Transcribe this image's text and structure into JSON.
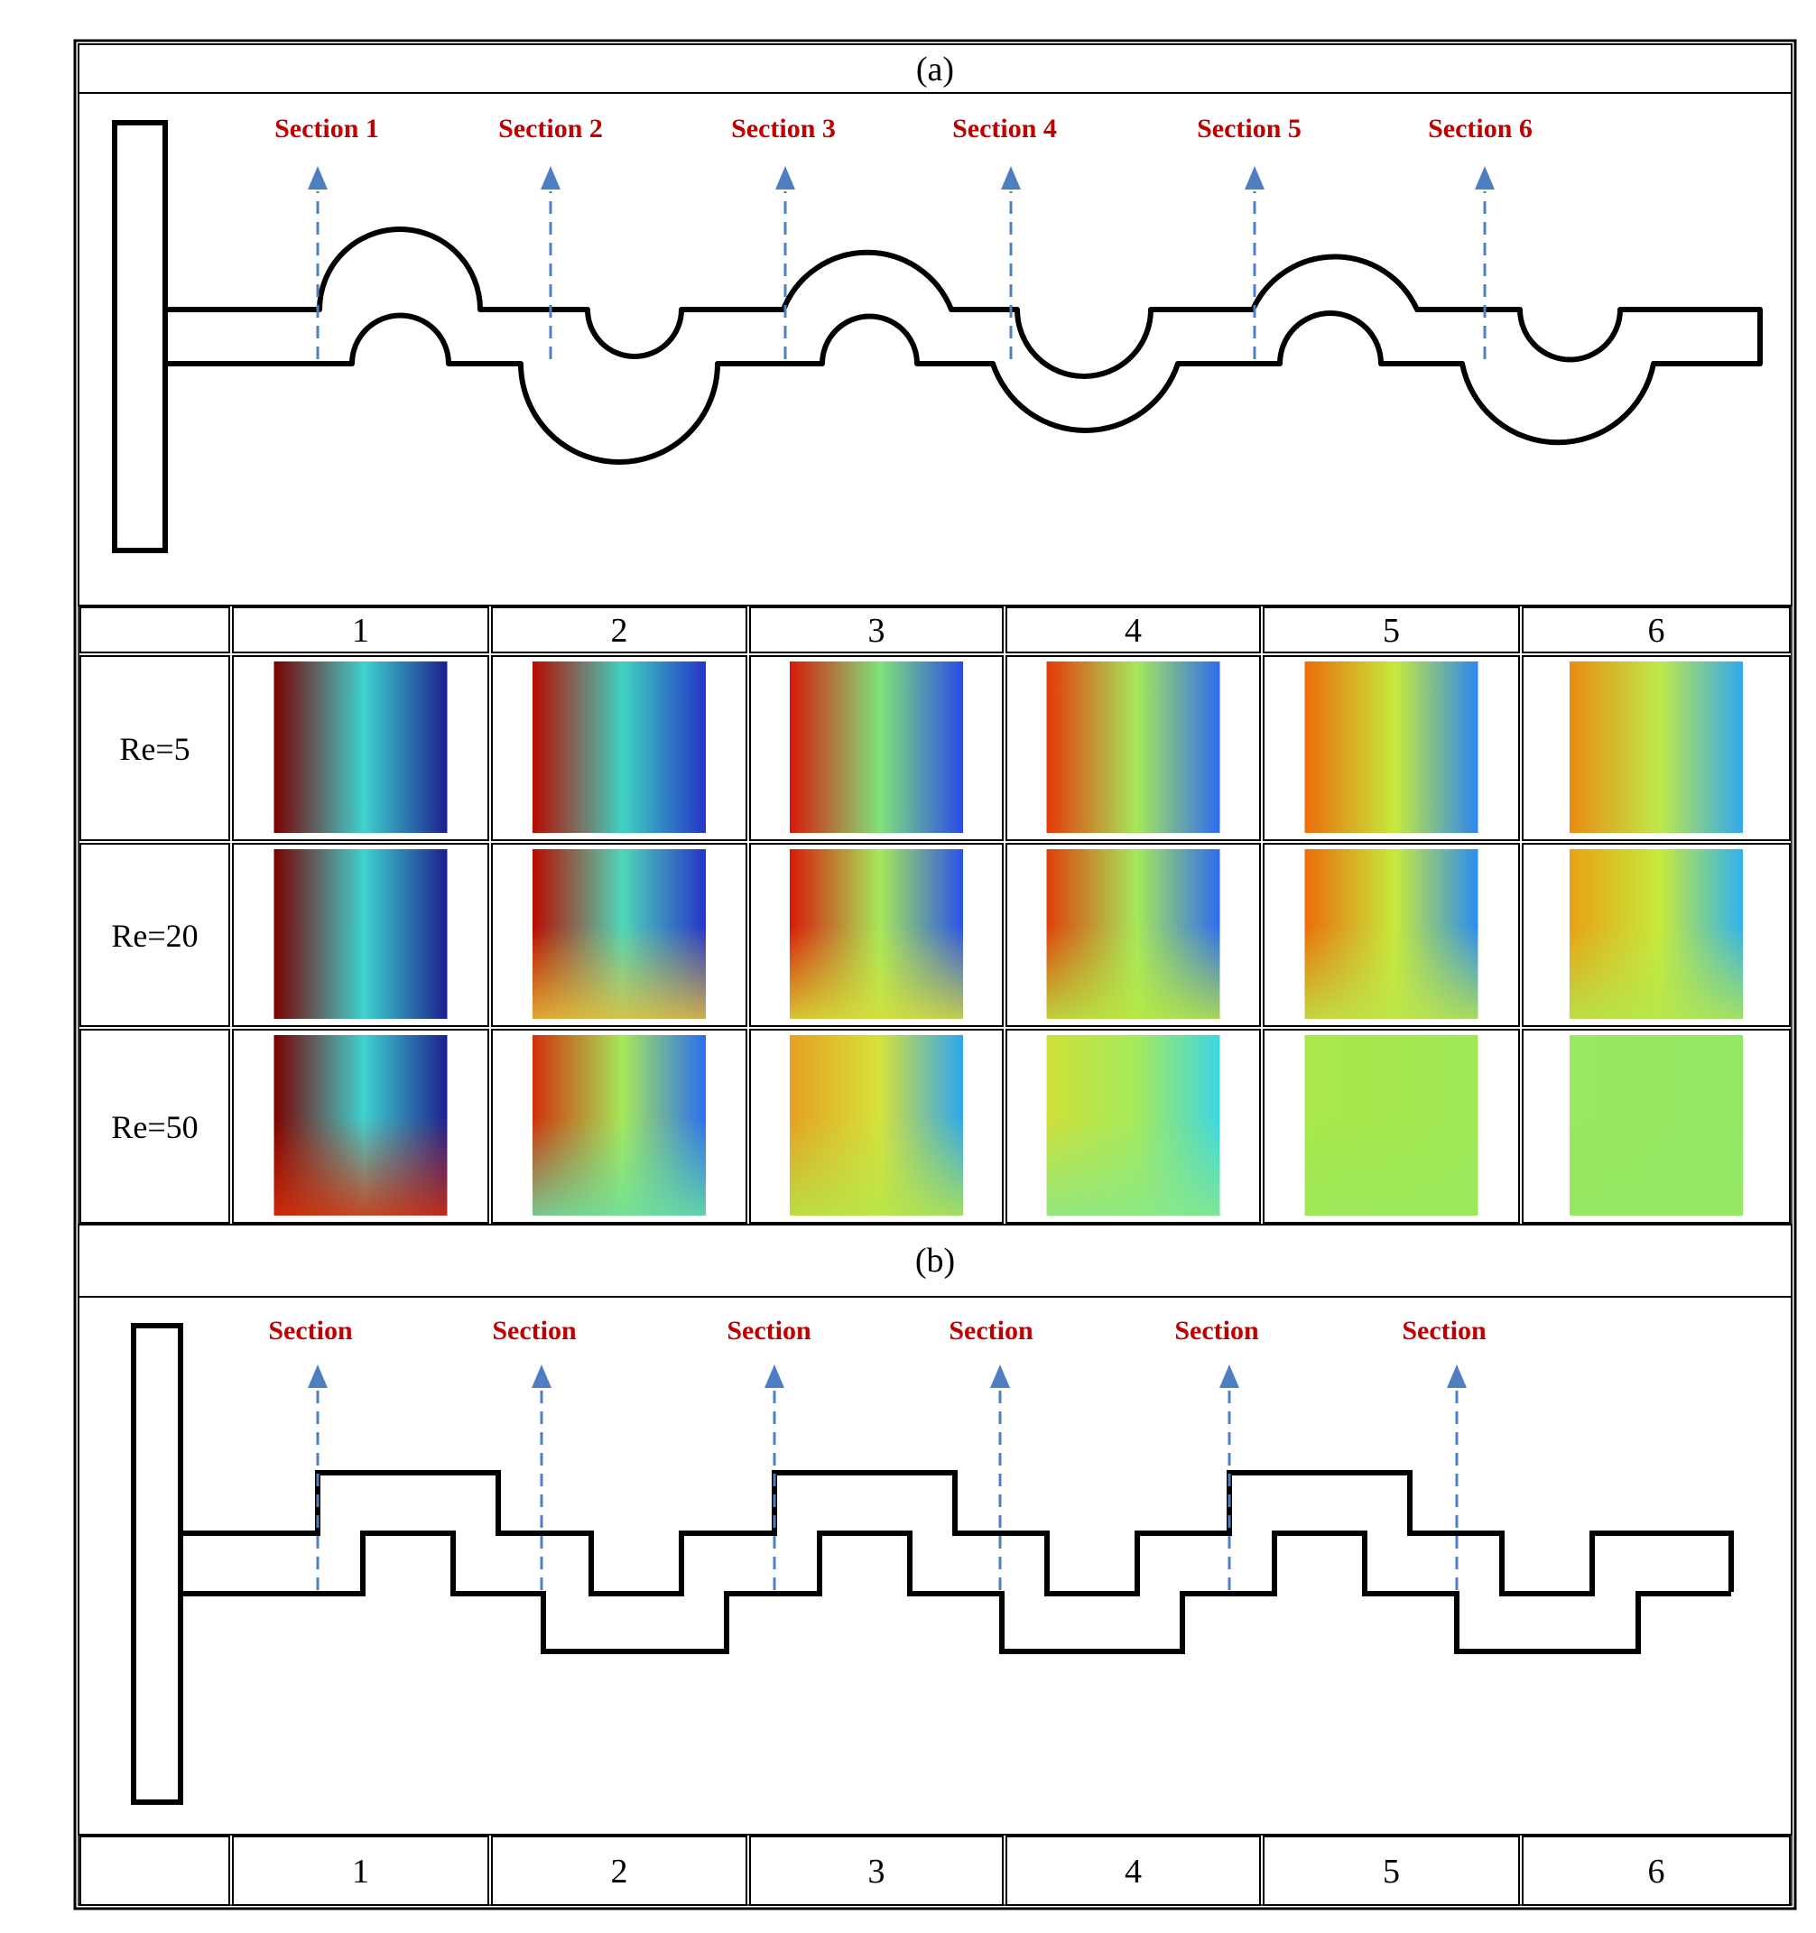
{
  "panel_a": {
    "label": "(a)",
    "sections": [
      "Section 1",
      "Section 2",
      "Section 3",
      "Section 4",
      "Section 5",
      "Section 6"
    ]
  },
  "table": {
    "columns": [
      "1",
      "2",
      "3",
      "4",
      "5",
      "6"
    ],
    "rows": [
      {
        "label": "Re=5",
        "maps": [
          {
            "left": "#7a0000",
            "mid": "#3fd2d0",
            "right": "#1c1f8f",
            "bottom": null
          },
          {
            "left": "#b80a00",
            "mid": "#3fd2c0",
            "right": "#2434c8",
            "bottom": null
          },
          {
            "left": "#d81a0a",
            "mid": "#7fe37a",
            "right": "#2a4ae8",
            "bottom": null
          },
          {
            "left": "#e5380a",
            "mid": "#a6e85a",
            "right": "#2f6cf0",
            "bottom": null
          },
          {
            "left": "#ec6d0c",
            "mid": "#c7ea3c",
            "right": "#2c86f2",
            "bottom": null
          },
          {
            "left": "#e98c10",
            "mid": "#bfe94a",
            "right": "#31a8f0",
            "bottom": null
          }
        ]
      },
      {
        "label": "Re=20",
        "maps": [
          {
            "left": "#7a0000",
            "mid": "#3fd2d0",
            "right": "#1c1f8f",
            "bottom": null
          },
          {
            "left": "#b80a00",
            "mid": "#4fd6b8",
            "right": "#2434c8",
            "bottom": "#e8c23a"
          },
          {
            "left": "#d81a0a",
            "mid": "#a6e85a",
            "right": "#2a52ea",
            "bottom": "#d8e03a"
          },
          {
            "left": "#e0400a",
            "mid": "#a6e85a",
            "right": "#2f6cf0",
            "bottom": "#b8e844"
          },
          {
            "left": "#ec6d0c",
            "mid": "#c7ea3c",
            "right": "#2c8cf2",
            "bottom": "#bde64a"
          },
          {
            "left": "#e9a114",
            "mid": "#c7ea3c",
            "right": "#31b2ee",
            "bottom": "#b4e74e"
          }
        ]
      },
      {
        "label": "Re=50",
        "maps": [
          {
            "left": "#7a0000",
            "mid": "#3fd2d0",
            "right": "#1c1f8f",
            "bottom": "#d83008"
          },
          {
            "left": "#d0300a",
            "mid": "#a6e85a",
            "right": "#2a6ef0",
            "bottom": "#6be0a0"
          },
          {
            "left": "#e6a020",
            "mid": "#d6e23c",
            "right": "#2ea6f0",
            "bottom": "#b6e64a"
          },
          {
            "left": "#cfe038",
            "mid": "#a6ea5c",
            "right": "#3cd6e4",
            "bottom": "#8ae888"
          },
          {
            "left": "#a9e84a",
            "mid": "#a4e84e",
            "right": "#9ee858",
            "bottom": "#9ae85c"
          },
          {
            "left": "#98e860",
            "mid": "#96e862",
            "right": "#92e866",
            "bottom": "#94e864"
          }
        ]
      }
    ]
  },
  "panel_b": {
    "label": "(b)",
    "sections": [
      "Section",
      "Section",
      "Section",
      "Section",
      "Section",
      "Section"
    ]
  },
  "bottom_columns": [
    "1",
    "2",
    "3",
    "4",
    "5",
    "6"
  ]
}
